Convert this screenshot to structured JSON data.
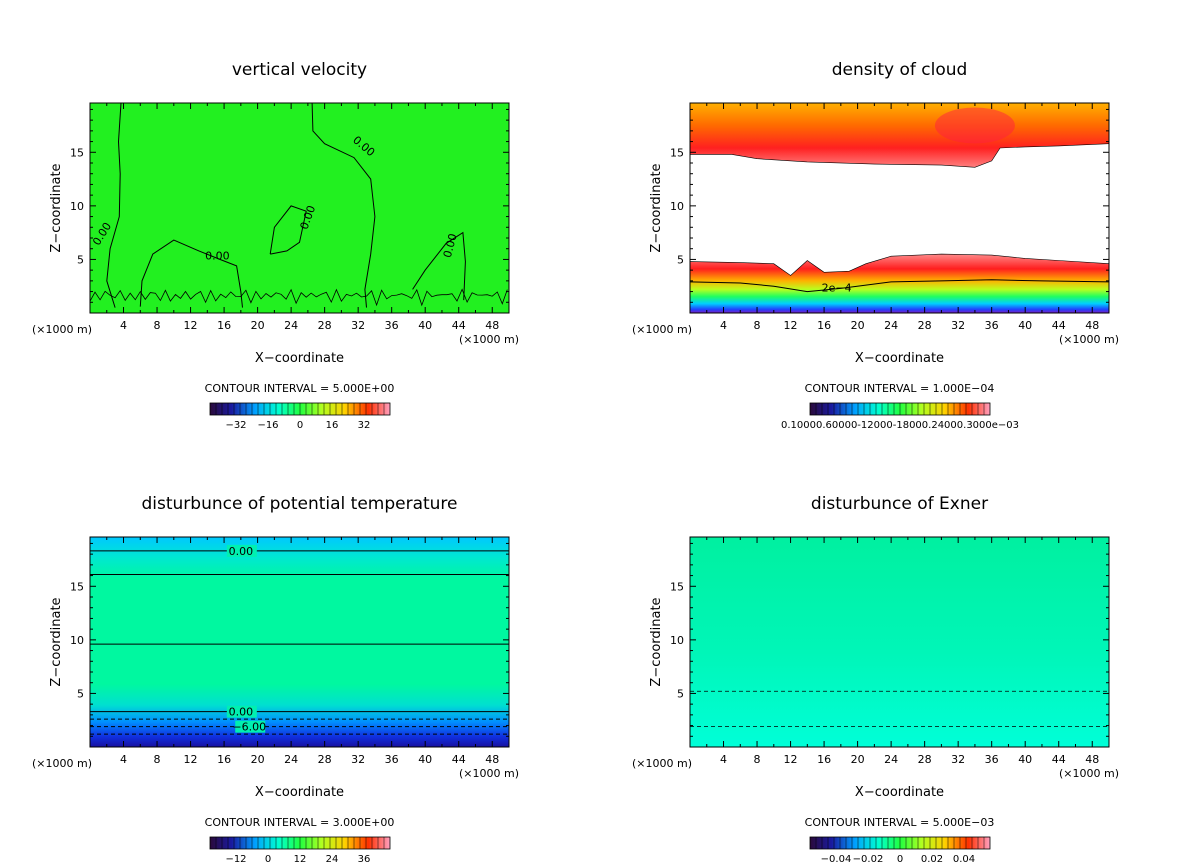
{
  "chart_data": [
    {
      "type": "heatmap",
      "title": "vertical velocity",
      "xlabel": "X−coordinate",
      "ylabel": "Z−coordinate",
      "x_unit_left": "(×1000 m)",
      "x_unit_right": "(×1000 m)",
      "xlim": [
        0,
        50
      ],
      "ylim": [
        0,
        19.6
      ],
      "x_ticks": [
        4,
        8,
        12,
        16,
        20,
        24,
        28,
        32,
        36,
        40,
        44,
        48
      ],
      "y_ticks": [
        5,
        10,
        15
      ],
      "contour_interval": "CONTOUR INTERVAL = 5.000E+00",
      "colorbar_labels": [
        "−32",
        "−16",
        "0",
        "16",
        "32"
      ],
      "contour_labels": [
        "0.00",
        "0.00",
        "0.00",
        "0.00",
        "0.00"
      ],
      "field": "uniform near 0 (green)"
    },
    {
      "type": "heatmap",
      "title": "density of cloud",
      "xlabel": "X−coordinate",
      "ylabel": "Z−coordinate",
      "x_unit_left": "(×1000 m)",
      "x_unit_right": "(×1000 m)",
      "xlim": [
        0,
        50
      ],
      "ylim": [
        0,
        19.6
      ],
      "x_ticks": [
        4,
        8,
        12,
        16,
        20,
        24,
        28,
        32,
        36,
        40,
        44,
        48
      ],
      "y_ticks": [
        5,
        10,
        15
      ],
      "contour_interval": "CONTOUR INTERVAL = 1.000E−04",
      "colorbar_labels": "0.10000.60000-12000-18000.24000.3000e−03",
      "contour_labels": [
        "2e−4"
      ]
    },
    {
      "type": "heatmap",
      "title": "disturbunce of potential temperature",
      "xlabel": "X−coordinate",
      "ylabel": "Z−coordinate",
      "x_unit_left": "(×1000 m)",
      "x_unit_right": "(×1000 m)",
      "xlim": [
        0,
        50
      ],
      "ylim": [
        0,
        19.6
      ],
      "x_ticks": [
        4,
        8,
        12,
        16,
        20,
        24,
        28,
        32,
        36,
        40,
        44,
        48
      ],
      "y_ticks": [
        5,
        10,
        15
      ],
      "contour_interval": "CONTOUR INTERVAL = 3.000E+00",
      "colorbar_labels": [
        "−12",
        "0",
        "12",
        "24",
        "36"
      ],
      "contour_labels": [
        "0.00",
        "0.00",
        "−6.00"
      ]
    },
    {
      "type": "heatmap",
      "title": "disturbunce of Exner",
      "xlabel": "X−coordinate",
      "ylabel": "Z−coordinate",
      "x_unit_left": "(×1000 m)",
      "x_unit_right": "(×1000 m)",
      "xlim": [
        0,
        50
      ],
      "ylim": [
        0,
        19.6
      ],
      "x_ticks": [
        4,
        8,
        12,
        16,
        20,
        24,
        28,
        32,
        36,
        40,
        44,
        48
      ],
      "y_ticks": [
        5,
        10,
        15
      ],
      "contour_interval": "CONTOUR INTERVAL = 5.000E−03",
      "colorbar_labels": [
        "−0.04",
        "−0.02",
        "0",
        "0.02",
        "0.04"
      ],
      "contour_labels": []
    }
  ]
}
